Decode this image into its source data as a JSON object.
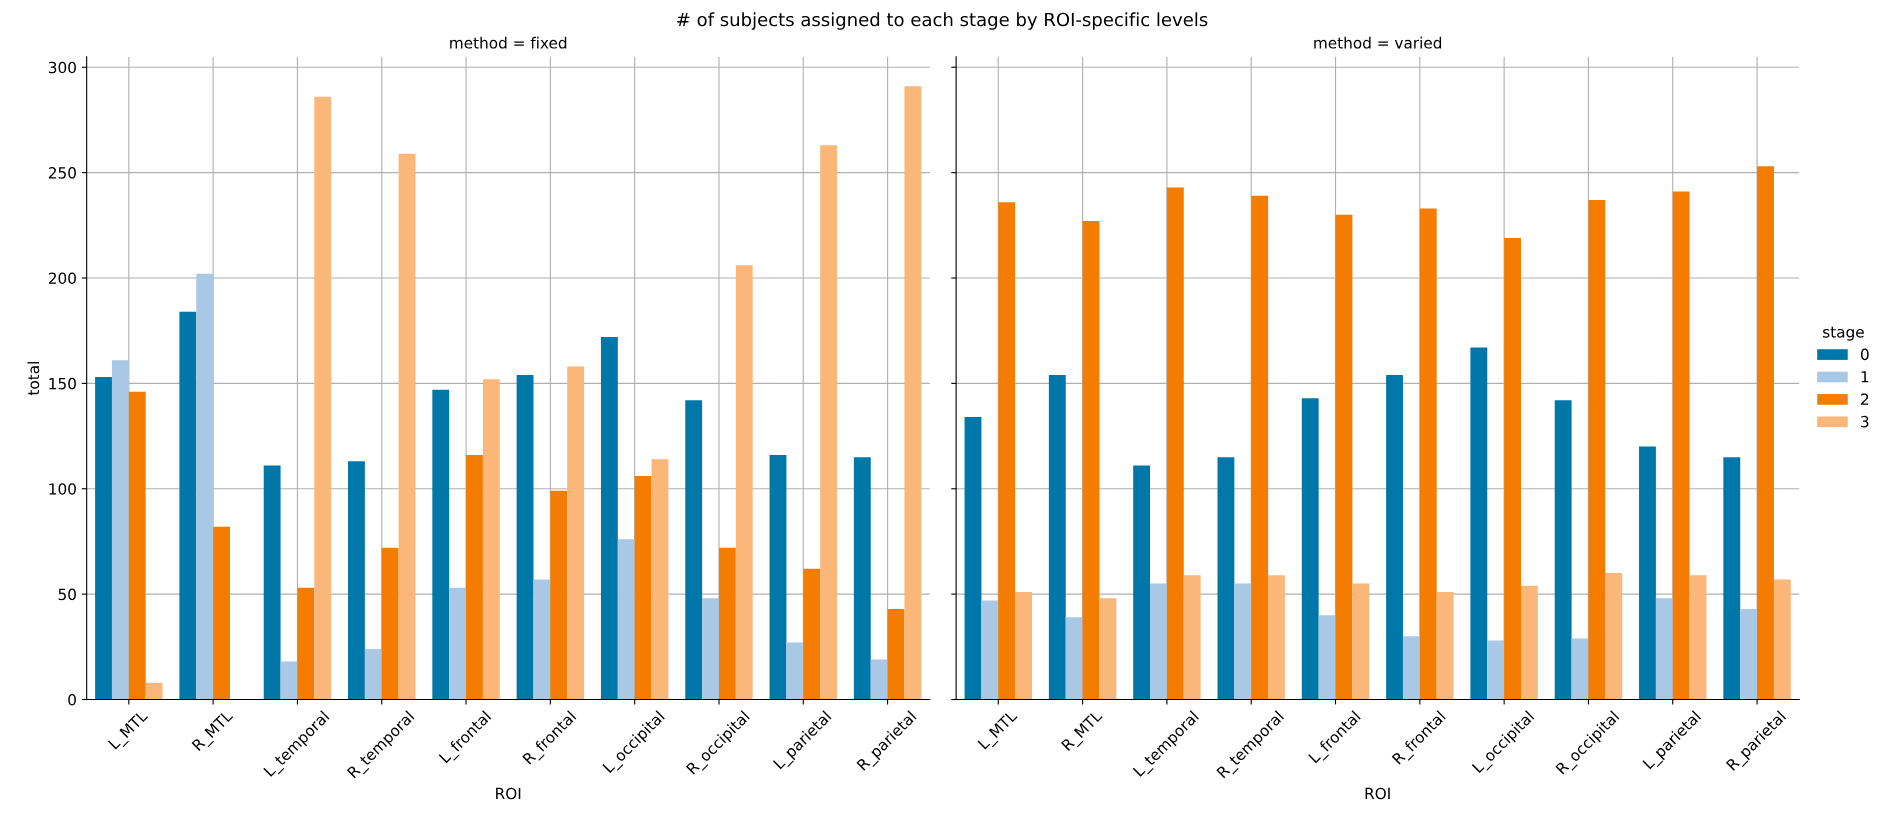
{
  "chart_data": [
    {
      "type": "bar",
      "title": "method = fixed",
      "xlabel": "ROI",
      "ylabel": "total",
      "annotations": [
        "# of subjects assigned to each stage by ROI-specific levels"
      ],
      "categories": [
        "L_MTL",
        "R_MTL",
        "L_temporal",
        "R_temporal",
        "L_frontal",
        "R_frontal",
        "L_occipital",
        "R_occipital",
        "L_parietal",
        "R_parietal"
      ],
      "series": [
        {
          "name": "0",
          "color": "#0077a9",
          "values": [
            153,
            184,
            111,
            113,
            147,
            154,
            172,
            142,
            116,
            115
          ]
        },
        {
          "name": "1",
          "color": "#a9c8e5",
          "values": [
            161,
            202,
            18,
            24,
            53,
            57,
            76,
            48,
            27,
            19
          ]
        },
        {
          "name": "2",
          "color": "#f47c00",
          "values": [
            146,
            82,
            53,
            72,
            116,
            99,
            106,
            72,
            62,
            43
          ]
        },
        {
          "name": "3",
          "color": "#fbb67a",
          "values": [
            8,
            0,
            286,
            259,
            152,
            158,
            114,
            206,
            263,
            291
          ]
        }
      ],
      "ylim": [
        0,
        305
      ],
      "yticks": [
        0,
        50,
        100,
        150,
        200,
        250,
        300
      ],
      "grid": true,
      "legend": "right"
    },
    {
      "type": "bar",
      "title": "method = varied",
      "xlabel": "ROI",
      "legend_title": "stage",
      "legend": "right",
      "tick_labels": "x",
      "categories": [
        "L_MTL",
        "R_MTL",
        "L_temporal",
        "R_temporal",
        "L_frontal",
        "R_frontal",
        "L_occipital",
        "R_occipital",
        "L_parietal",
        "R_parietal"
      ],
      "series": [
        {
          "name": "0",
          "color": "#0077a9",
          "values": [
            134,
            154,
            111,
            115,
            143,
            154,
            167,
            142,
            120,
            115
          ]
        },
        {
          "name": "1",
          "color": "#a9c8e5",
          "values": [
            47,
            39,
            55,
            55,
            40,
            30,
            28,
            29,
            48,
            43
          ]
        },
        {
          "name": "2",
          "color": "#f47c00",
          "values": [
            236,
            227,
            243,
            239,
            230,
            233,
            219,
            237,
            241,
            253
          ]
        },
        {
          "name": "3",
          "color": "#fbb67a",
          "values": [
            51,
            48,
            59,
            59,
            55,
            51,
            54,
            60,
            59,
            57
          ]
        }
      ],
      "ylim": [
        0,
        305
      ],
      "yticks": [
        0,
        50,
        100,
        150,
        200,
        250,
        300
      ],
      "grid": true
    }
  ]
}
